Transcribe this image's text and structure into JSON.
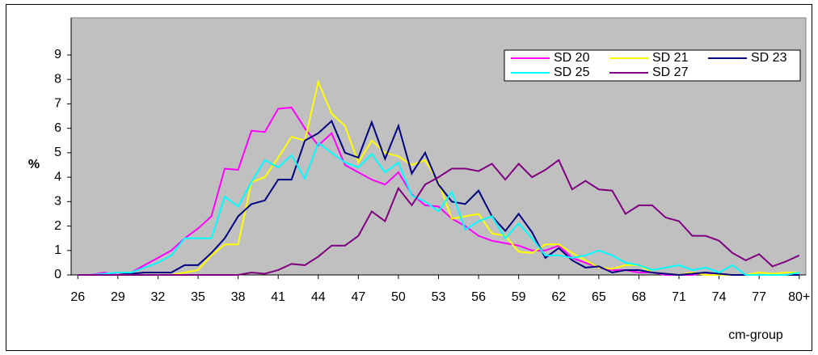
{
  "chart_data": {
    "type": "line",
    "y_label": "%",
    "x_label": "cm-group",
    "categories": [
      "26",
      null,
      null,
      "29",
      null,
      null,
      "32",
      null,
      null,
      "35",
      null,
      null,
      "38",
      null,
      null,
      "41",
      null,
      null,
      "44",
      null,
      null,
      "47",
      null,
      null,
      "50",
      null,
      null,
      "53",
      null,
      null,
      "56",
      null,
      null,
      "59",
      null,
      null,
      "62",
      null,
      null,
      "65",
      null,
      null,
      "68",
      null,
      null,
      "71",
      null,
      null,
      "74",
      null,
      null,
      "77",
      null,
      null,
      "80+"
    ],
    "series": [
      {
        "name": "SD 20",
        "color": "#ff00ff",
        "values": [
          0,
          0,
          0.1,
          0,
          0.1,
          0.4,
          0.7,
          1.0,
          1.5,
          1.9,
          2.4,
          4.35,
          4.3,
          5.9,
          5.85,
          6.8,
          6.85,
          6.0,
          5.3,
          5.8,
          4.5,
          4.2,
          3.9,
          3.7,
          4.2,
          3.3,
          2.85,
          2.8,
          2.3,
          2.0,
          1.6,
          1.4,
          1.3,
          1.2,
          1.0,
          1.0,
          1.2,
          0.7,
          0.5,
          0.3,
          0.2,
          0.2,
          0.1,
          0.1,
          0,
          0,
          0,
          0.1,
          0,
          0,
          0,
          0,
          0,
          0,
          0
        ]
      },
      {
        "name": "SD 21",
        "color": "#ffff00",
        "values": [
          0,
          0,
          0,
          0,
          0,
          0,
          0,
          0,
          0.1,
          0.2,
          0.8,
          1.25,
          1.25,
          3.8,
          4.0,
          4.8,
          5.65,
          5.5,
          7.9,
          6.6,
          6.1,
          4.6,
          5.5,
          5.0,
          4.85,
          4.5,
          4.7,
          3.8,
          2.3,
          2.4,
          2.5,
          1.7,
          1.6,
          0.95,
          0.9,
          1.25,
          1.25,
          0.9,
          0.6,
          0.3,
          0.25,
          0.4,
          0.4,
          0.1,
          0.05,
          0,
          0.1,
          0,
          0,
          0,
          0,
          0.1,
          0.05,
          0.1,
          0.1
        ]
      },
      {
        "name": "SD 23",
        "color": "#000080",
        "values": [
          0,
          0,
          0,
          0,
          0.05,
          0.1,
          0.1,
          0.1,
          0.4,
          0.4,
          0.9,
          1.5,
          2.4,
          2.9,
          3.05,
          3.9,
          3.9,
          5.5,
          5.8,
          6.3,
          5.0,
          4.8,
          6.25,
          4.75,
          6.1,
          4.15,
          5.0,
          3.7,
          3.0,
          2.9,
          3.45,
          2.4,
          1.8,
          2.5,
          1.75,
          0.7,
          1.1,
          0.6,
          0.3,
          0.35,
          0.1,
          0.2,
          0.2,
          0.1,
          0.05,
          0,
          0.05,
          0.1,
          0.05,
          0,
          0,
          0,
          0,
          0,
          0
        ]
      },
      {
        "name": "SD 25",
        "color": "#00ffff",
        "values": [
          0,
          0,
          0.05,
          0.1,
          0.1,
          0.3,
          0.5,
          0.8,
          1.5,
          1.5,
          1.5,
          3.2,
          2.8,
          3.8,
          4.7,
          4.4,
          4.9,
          3.95,
          5.4,
          5.0,
          4.6,
          4.4,
          4.95,
          4.2,
          4.6,
          3.25,
          3.0,
          2.6,
          3.4,
          1.85,
          2.2,
          2.4,
          1.5,
          2.1,
          1.5,
          0.8,
          0.8,
          0.7,
          0.8,
          1.0,
          0.8,
          0.5,
          0.4,
          0.2,
          0.3,
          0.4,
          0.2,
          0.3,
          0.1,
          0.4,
          0,
          0,
          0,
          0,
          0.1
        ]
      },
      {
        "name": "SD 27",
        "color": "#800080",
        "values": [
          0,
          0,
          0,
          0,
          0,
          0,
          0,
          0,
          0,
          0,
          0,
          0,
          0,
          0.1,
          0.05,
          0.2,
          0.45,
          0.4,
          0.75,
          1.2,
          1.2,
          1.6,
          2.6,
          2.2,
          3.55,
          2.85,
          3.7,
          4.0,
          4.35,
          4.35,
          4.25,
          4.55,
          3.9,
          4.55,
          4.0,
          4.3,
          4.7,
          3.5,
          3.85,
          3.5,
          3.45,
          2.5,
          2.85,
          2.85,
          2.35,
          2.2,
          1.6,
          1.6,
          1.4,
          0.9,
          0.6,
          0.85,
          0.35,
          0.55,
          0.8
        ]
      }
    ],
    "ylim": [
      0,
      9
    ],
    "yticks": [
      0,
      1,
      2,
      3,
      4,
      5,
      6,
      7,
      8,
      9
    ],
    "legend": "top-right",
    "plot_background": "#c0c0c0"
  }
}
